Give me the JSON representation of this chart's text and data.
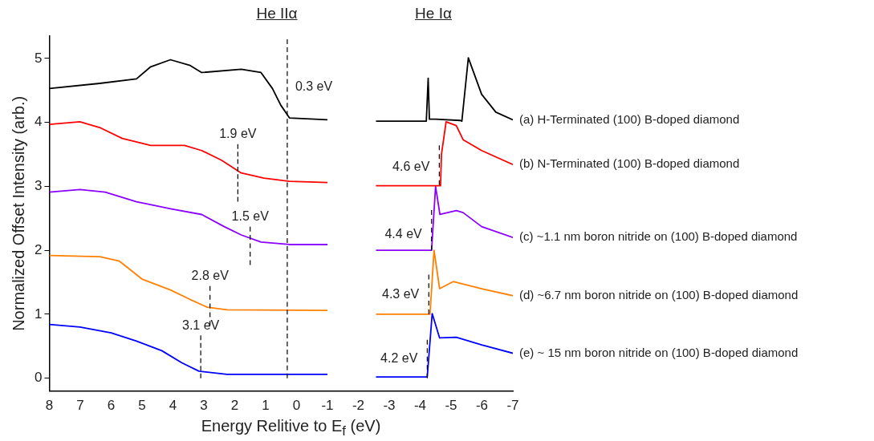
{
  "chart_data": {
    "type": "line",
    "xlabel": "Energy Relitive to E$_{f}$ (eV)",
    "ylabel": "Normalized Offset Intensity (arb.)",
    "xlim": [
      8,
      -7
    ],
    "xticks": [
      8,
      7,
      6,
      5,
      4,
      3,
      2,
      1,
      0,
      -1,
      -2,
      -3,
      -4,
      -5,
      -6,
      -7
    ],
    "ylim": [
      -0.2,
      5.35
    ],
    "yticks": [
      0,
      1,
      2,
      3,
      4,
      5
    ],
    "grid": false,
    "legend": false,
    "marker": "none",
    "series": [
      {
        "name": "(a) H-Terminated (100) B-doped diamond",
        "color": "#000000",
        "x": [
          8,
          6.37,
          5.18,
          4.72,
          4.08,
          3.44,
          3.07,
          1.79,
          1.15,
          0.78,
          0.51,
          0.23,
          -1,
          -1.5,
          -2.57,
          -4.2,
          -4.26,
          -4.3,
          -4.5,
          -5.3,
          -5.35,
          -5.56,
          -5.99,
          -6.45,
          -7
        ],
        "values": [
          4.53,
          4.61,
          4.68,
          4.87,
          4.98,
          4.89,
          4.78,
          4.83,
          4.78,
          4.53,
          4.27,
          4.07,
          4.04,
          null,
          4.02,
          4.02,
          4.69,
          4.05,
          4.05,
          4.03,
          4.02,
          5.01,
          4.44,
          4.16,
          4.04
        ]
      },
      {
        "name": "(b) N-Terminated (100) B-doped diamond",
        "color": "#ff0000",
        "x": [
          8,
          7.01,
          6.37,
          5.64,
          4.72,
          3.62,
          3.07,
          2.43,
          1.79,
          1.06,
          0.23,
          -1,
          -1.5,
          -2.57,
          -4.66,
          -4.69,
          -4.84,
          -5.17,
          -5.39,
          -5.99,
          -7
        ],
        "values": [
          3.97,
          4.01,
          3.92,
          3.75,
          3.64,
          3.64,
          3.56,
          3.41,
          3.21,
          3.13,
          3.08,
          3.06,
          null,
          3.01,
          3.01,
          3.5,
          4.01,
          3.95,
          3.73,
          3.56,
          3.34
        ]
      },
      {
        "name": "(c) ~1.1 nm boron nitride on (100) B-doped diamond",
        "color": "#8b00ff",
        "x": [
          8,
          7.01,
          6.19,
          5.18,
          4.08,
          3.07,
          2.34,
          1.79,
          1.15,
          0.23,
          -1,
          -1.5,
          -2.57,
          -4.37,
          -4.5,
          -4.64,
          -5.17,
          -5.39,
          -5.99,
          -7
        ],
        "values": [
          2.91,
          2.95,
          2.91,
          2.76,
          2.65,
          2.56,
          2.37,
          2.24,
          2.13,
          2.09,
          2.09,
          null,
          2.0,
          2.0,
          3.0,
          2.56,
          2.62,
          2.59,
          2.37,
          2.2
        ]
      },
      {
        "name": "(d) ~6.7 nm boron nitride on (100) B-doped diamond",
        "color": "#ff8000",
        "x": [
          8,
          6.37,
          5.73,
          5.0,
          4.08,
          3.44,
          2.89,
          2.25,
          -1,
          -1.5,
          -2.57,
          -4.32,
          -4.45,
          -4.63,
          -5.07,
          -5.99,
          -7
        ],
        "values": [
          1.92,
          1.9,
          1.83,
          1.55,
          1.38,
          1.23,
          1.11,
          1.07,
          1.06,
          null,
          1.0,
          1.0,
          2.0,
          1.4,
          1.51,
          1.4,
          1.29
        ]
      },
      {
        "name": "(e) ~ 15 nm boron nitride on (100) B-doped diamond",
        "color": "#0000ff",
        "x": [
          8,
          7.01,
          6.0,
          5.18,
          4.36,
          3.71,
          3.16,
          2.25,
          -1,
          -1.5,
          -2.57,
          -4.23,
          -4.39,
          -4.63,
          -5.17,
          -5.99,
          -7
        ],
        "values": [
          0.84,
          0.8,
          0.71,
          0.58,
          0.43,
          0.24,
          0.11,
          0.06,
          0.06,
          null,
          0.02,
          0.02,
          1.01,
          0.63,
          0.64,
          0.52,
          0.39
        ]
      },
      {
        "type": "line",
        "line_style": "dashed",
        "color": "#000000",
        "x": [
          0.3,
          0.3
        ],
        "values": [
          5.3,
          0
        ]
      },
      {
        "type": "line",
        "line_style": "dashed",
        "color": "#000000",
        "x": [
          1.9,
          1.9
        ],
        "values": [
          3.66,
          2.76
        ]
      },
      {
        "type": "line",
        "line_style": "dashed",
        "color": "#000000",
        "x": [
          1.5,
          1.5
        ],
        "values": [
          2.37,
          1.77
        ]
      },
      {
        "type": "line",
        "line_style": "dashed",
        "color": "#000000",
        "x": [
          2.8,
          2.8
        ],
        "values": [
          1.44,
          0.82
        ]
      },
      {
        "type": "line",
        "line_style": "dashed",
        "color": "#000000",
        "x": [
          3.1,
          3.1
        ],
        "values": [
          0.67,
          0
        ]
      },
      {
        "type": "line",
        "line_style": "dashed",
        "color": "#000000",
        "x": [
          -4.62,
          -4.62
        ],
        "values": [
          3.64,
          3.02
        ]
      },
      {
        "type": "line",
        "line_style": "dashed",
        "color": "#000000",
        "x": [
          -4.37,
          -4.37
        ],
        "values": [
          2.63,
          2.0
        ]
      },
      {
        "type": "line",
        "line_style": "dashed",
        "color": "#000000",
        "x": [
          -4.28,
          -4.28
        ],
        "values": [
          1.62,
          1.0
        ]
      },
      {
        "type": "line",
        "line_style": "dashed",
        "color": "#000000",
        "x": [
          -4.23,
          -4.23
        ],
        "values": [
          0.6,
          0
        ]
      }
    ],
    "annotations": [
      "He IIα",
      "He Iα",
      {
        "text": "0.3 eV",
        "x": 0.3,
        "y": 4.55
      },
      {
        "text": "1.9 eV",
        "x": 1.9,
        "y": 3.66
      },
      {
        "text": "1.5 eV",
        "x": 1.5,
        "y": 2.37
      },
      {
        "text": "2.8 eV",
        "x": 2.8,
        "y": 1.44
      },
      {
        "text": "3.1 eV",
        "x": 3.1,
        "y": 0.67
      },
      {
        "text": "4.6 eV",
        "x": -4.62,
        "y": 3.3
      },
      {
        "text": "4.4 eV",
        "x": -4.37,
        "y": 2.25
      },
      {
        "text": "4.3 eV",
        "x": -4.28,
        "y": 1.3
      },
      {
        "text": "4.2 eV",
        "x": -4.23,
        "y": 0.3
      }
    ]
  }
}
